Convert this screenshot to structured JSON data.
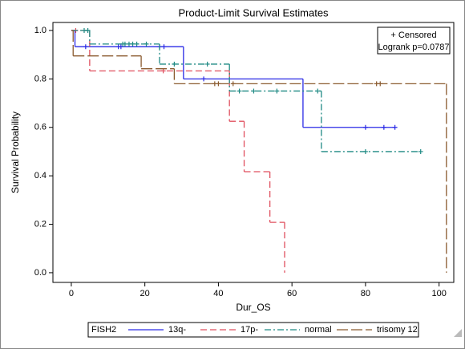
{
  "chart_data": {
    "type": "step",
    "title": "Product-Limit Survival Estimates",
    "x_label": "Dur_OS",
    "y_label": "Survival Probability",
    "legend_title": "FISH2",
    "inset_lines": [
      "+ Censored",
      "Logrank p=0.0787"
    ],
    "xlim": [
      -5,
      104
    ],
    "ylim": [
      -0.04,
      1.033
    ],
    "xticks": [
      0,
      20,
      40,
      60,
      80,
      100
    ],
    "yticks": [
      {
        "value": 0,
        "label": "0.0"
      },
      0.2,
      0.4,
      0.6,
      0.8,
      {
        "value": 1,
        "label": "1.0"
      }
    ],
    "series": [
      {
        "name": "13q-",
        "color": "#2a2ae6",
        "line_style": "solid",
        "x": [
          0,
          1,
          30.5,
          63
        ],
        "values": [
          1,
          0.933,
          0.8,
          0.6
        ],
        "censored_x": [
          3.9,
          12.8,
          13.5,
          24,
          25.2,
          36,
          80,
          85,
          88
        ],
        "censored_values": [
          0.933,
          0.933,
          0.933,
          0.933,
          0.933,
          0.8,
          0.6,
          0.6,
          0.6
        ]
      },
      {
        "name": "17p-",
        "color": "#e0505f",
        "line_style": "dashed",
        "x": [
          0,
          5,
          43,
          47,
          54,
          58
        ],
        "values": [
          1,
          0.833,
          0.625,
          0.417,
          0.208,
          0
        ],
        "censored_x": [
          1.2,
          25
        ],
        "censored_values": [
          1,
          0.833
        ]
      },
      {
        "name": "normal",
        "color": "#1f8a84",
        "line_style": "dashdot",
        "x": [
          0,
          5,
          24,
          43,
          68
        ],
        "values": [
          1,
          0.944,
          0.861,
          0.75,
          0.5
        ],
        "censored_x": [
          3.5,
          4.5,
          14,
          14.6,
          15.7,
          16.7,
          17.8,
          20.4,
          28,
          37,
          45.7,
          49.6,
          55.9,
          67,
          80,
          95
        ],
        "censored_values": [
          1,
          1,
          0.944,
          0.944,
          0.944,
          0.944,
          0.944,
          0.944,
          0.861,
          0.861,
          0.75,
          0.75,
          0.75,
          0.75,
          0.5,
          0.5
        ]
      },
      {
        "name": "trisomy 12",
        "color": "#8a5a2e",
        "line_style": "longdash",
        "x": [
          0,
          0.5,
          19,
          28,
          102
        ],
        "values": [
          1,
          0.895,
          0.842,
          0.78,
          0
        ],
        "censored_x": [
          39,
          40,
          44,
          83,
          84
        ],
        "censored_values": [
          0.78,
          0.78,
          0.78,
          0.78,
          0.78
        ]
      }
    ]
  }
}
